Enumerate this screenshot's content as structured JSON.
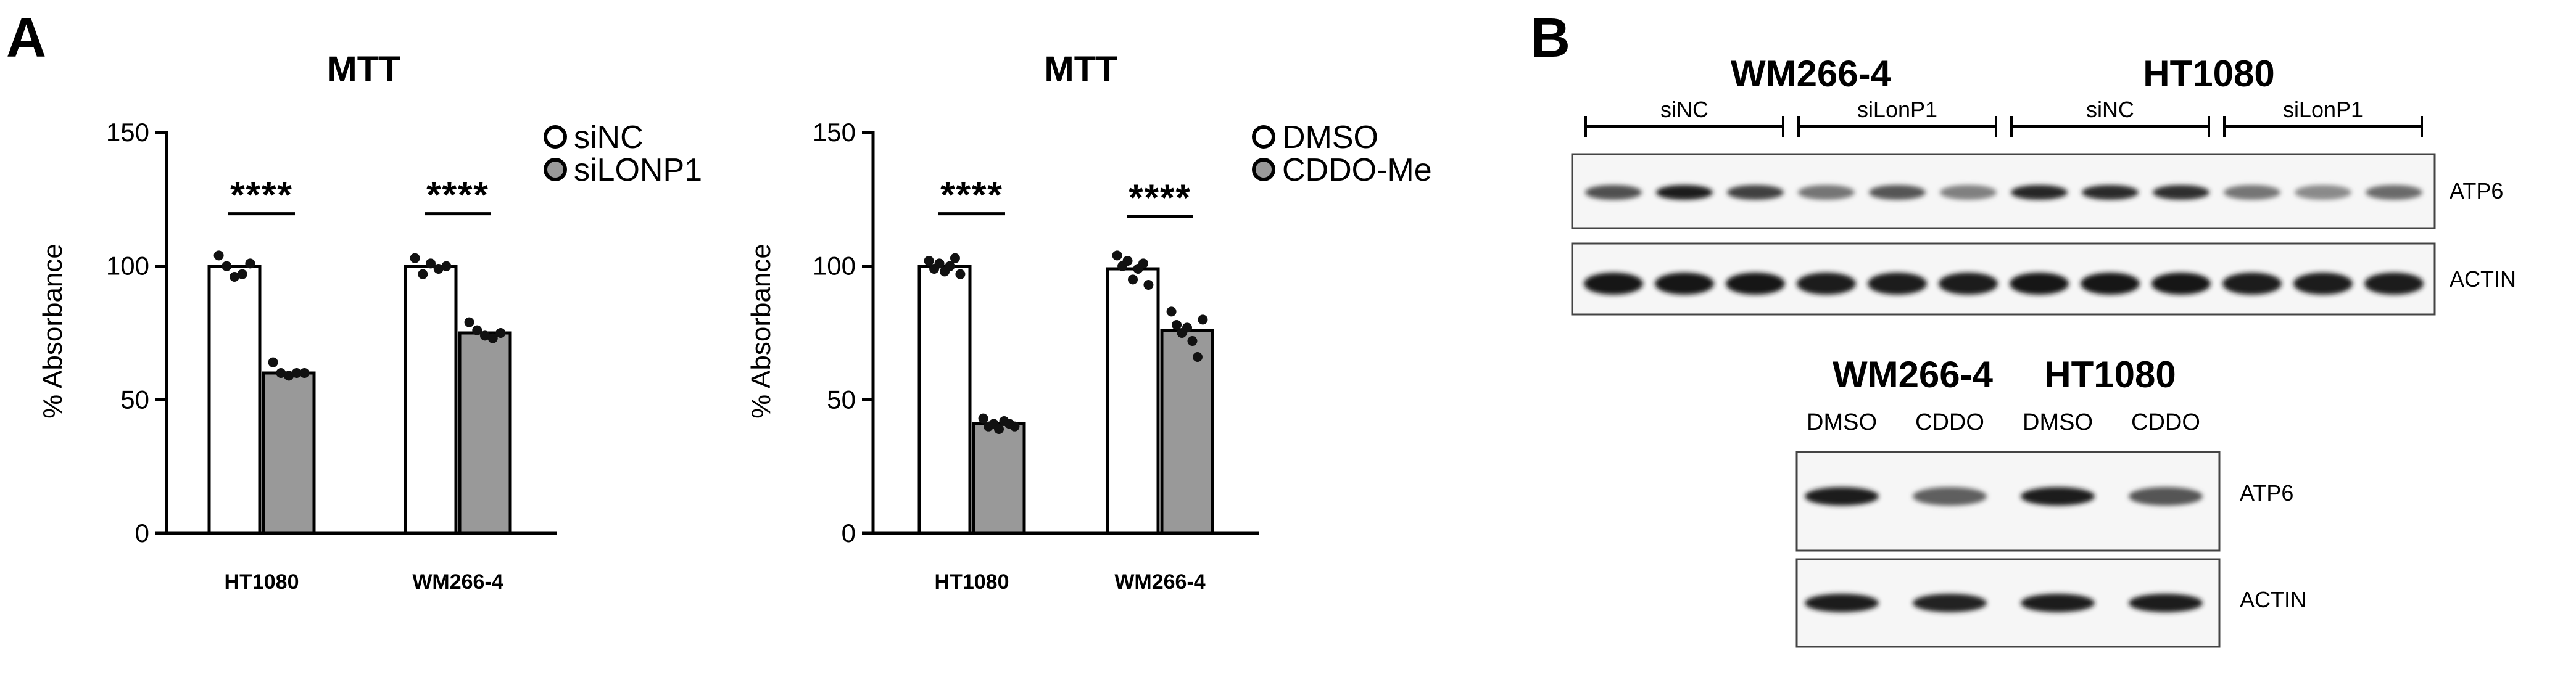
{
  "panels": {
    "a_label": "A",
    "b_label": "B"
  },
  "colors": {
    "bar_control": "#ffffff",
    "bar_treated": "#999999",
    "axis": "#000000",
    "dot": "#111111"
  },
  "chart_data": [
    {
      "type": "bar",
      "title": "MTT",
      "ylabel": "% Absorbance",
      "xlabel": "",
      "ylim": [
        0,
        150
      ],
      "yticks": [
        0,
        50,
        100,
        150
      ],
      "categories": [
        "HT1080",
        "WM266-4"
      ],
      "significance": [
        "****",
        "****"
      ],
      "legend_position": "top-right",
      "grid": false,
      "series": [
        {
          "name": "siNC",
          "values": [
            100,
            100
          ],
          "points": [
            [
              104,
              100,
              96,
              97,
              101
            ],
            [
              103,
              97,
              101,
              99,
              100
            ]
          ]
        },
        {
          "name": "siLONP1",
          "values": [
            60,
            75
          ],
          "points": [
            [
              64,
              60,
              59,
              60,
              60
            ],
            [
              79,
              76,
              74,
              73,
              75
            ]
          ]
        }
      ]
    },
    {
      "type": "bar",
      "title": "MTT",
      "ylabel": "% Absorbance",
      "xlabel": "",
      "ylim": [
        0,
        150
      ],
      "yticks": [
        0,
        50,
        100,
        150
      ],
      "categories": [
        "HT1080",
        "WM266-4"
      ],
      "significance": [
        "****",
        "****"
      ],
      "legend_position": "top-right",
      "grid": false,
      "series": [
        {
          "name": "DMSO",
          "values": [
            100,
            99
          ],
          "points": [
            [
              102,
              99,
              101,
              98,
              100,
              103,
              97
            ],
            [
              104,
              100,
              102,
              95,
              99,
              101,
              93
            ]
          ]
        },
        {
          "name": "CDDO-Me",
          "values": [
            41,
            76
          ],
          "points": [
            [
              43,
              40,
              41,
              39,
              42,
              41,
              40
            ],
            [
              83,
              78,
              75,
              77,
              72,
              66,
              80
            ]
          ]
        }
      ]
    }
  ],
  "blot_top": {
    "cell_lines": [
      "WM266-4",
      "HT1080"
    ],
    "conditions": [
      "siNC",
      "siLonP1",
      "siNC",
      "siLonP1"
    ],
    "proteins": [
      "ATP6",
      "ACTIN"
    ],
    "atp6_intensity": [
      0.72,
      0.95,
      0.8,
      0.55,
      0.7,
      0.5,
      0.92,
      0.9,
      0.88,
      0.55,
      0.45,
      0.6
    ],
    "actin_intensity": [
      1,
      1,
      1,
      0.97,
      0.97,
      0.97,
      0.98,
      0.98,
      0.98,
      0.96,
      0.96,
      0.96
    ]
  },
  "blot_bottom": {
    "cell_lines": [
      "WM266-4",
      "HT1080"
    ],
    "conditions": [
      "DMSO",
      "CDDO",
      "DMSO",
      "CDDO"
    ],
    "proteins": [
      "ATP6",
      "ACTIN"
    ],
    "atp6_intensity": [
      0.95,
      0.65,
      0.95,
      0.7
    ],
    "actin_intensity": [
      0.95,
      0.93,
      0.95,
      0.95
    ]
  }
}
